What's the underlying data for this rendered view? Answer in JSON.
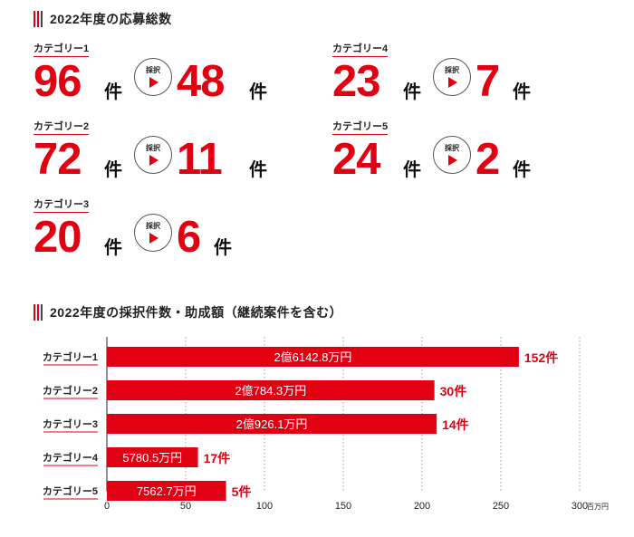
{
  "section1": {
    "title": "2022年度の応募総数",
    "badge_label": "採択",
    "items": [
      {
        "label": "カテゴリー1",
        "applied": "96",
        "adopted": "48",
        "unit": "件"
      },
      {
        "label": "カテゴリー2",
        "applied": "72",
        "adopted": "11",
        "unit": "件"
      },
      {
        "label": "カテゴリー3",
        "applied": "20",
        "adopted": "6",
        "unit": "件"
      },
      {
        "label": "カテゴリー4",
        "applied": "23",
        "adopted": "7",
        "unit": "件"
      },
      {
        "label": "カテゴリー5",
        "applied": "24",
        "adopted": "2",
        "unit": "件"
      }
    ]
  },
  "section2": {
    "title": "2022年度の採択件数・助成額（継続案件を含む）"
  },
  "chart_data": {
    "type": "bar",
    "orientation": "horizontal",
    "categories": [
      "カテゴリー1",
      "カテゴリー2",
      "カテゴリー3",
      "カテゴリー4",
      "カテゴリー5"
    ],
    "values": [
      261.428,
      207.843,
      209.261,
      57.805,
      75.627
    ],
    "bar_labels": [
      "2億6142.8万円",
      "2億784.3万円",
      "2億926.1万円",
      "5780.5万円",
      "7562.7万円"
    ],
    "counts": [
      "152件",
      "30件",
      "14件",
      "17件",
      "5件"
    ],
    "xlim": [
      0,
      300
    ],
    "xticks": [
      0,
      50,
      100,
      150,
      200,
      250,
      300
    ],
    "xunit": "百万円",
    "grid": "vertical dotted",
    "bar_color": "#e00012",
    "count_color": "#e00012"
  }
}
